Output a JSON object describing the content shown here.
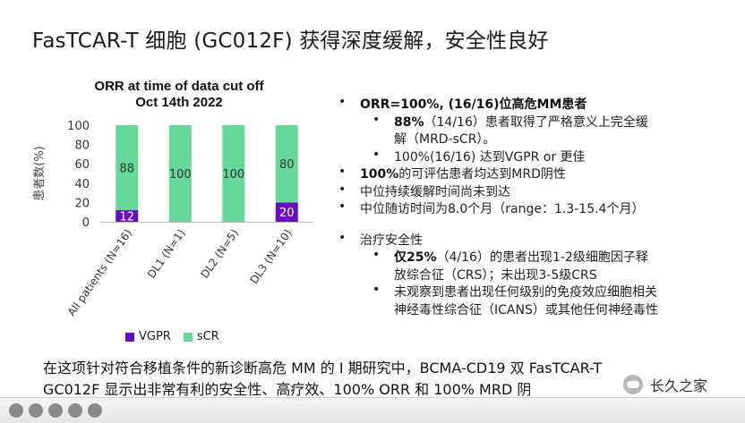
{
  "slide": {
    "title": "FasTCAR-T 细胞 (GC012F) 获得深度缓解，安全性良好"
  },
  "chart_data": {
    "type": "bar",
    "title_line1": "ORR at time of data cut off",
    "title_line2": "Oct 14th 2022",
    "ylabel": "患者数(%)",
    "ylim": [
      0,
      100
    ],
    "yticks": [
      "0",
      "20",
      "40",
      "60",
      "80",
      "100"
    ],
    "categories": [
      "All patients (N=16)",
      "DL1 (N=1)",
      "DL2 (N=5)",
      "DL3 (N=10)"
    ],
    "series": [
      {
        "name": "VGPR",
        "values": [
          12,
          0,
          0,
          20
        ],
        "labels": [
          "12",
          "",
          "",
          "20"
        ]
      },
      {
        "name": "sCR",
        "values": [
          88,
          100,
          100,
          80
        ],
        "labels": [
          "88",
          "100",
          "100",
          "80"
        ]
      }
    ],
    "legend": [
      "VGPR",
      "sCR"
    ],
    "legend_position": "bottom",
    "colors": {
      "VGPR": "#6a0dbe",
      "sCR": "#66d99a"
    }
  },
  "bullets": [
    {
      "level": 1,
      "bold": "ORR=100%, (16/16)位高危MM患者",
      "text": ""
    },
    {
      "level": 2,
      "bold": "88%",
      "text": "（14/16）患者取得了严格意义上完全缓"
    },
    {
      "level": 2,
      "bold": "",
      "text": "解（MRD-sCR）。",
      "cont": true
    },
    {
      "level": 2,
      "bold": "",
      "text": "100%(16/16) 达到VGPR or 更佳"
    },
    {
      "level": 1,
      "bold": "100%",
      "text": "的可评估患者均达到MRD阴性"
    },
    {
      "level": 1,
      "bold": "",
      "text": "中位持续缓解时间尚未到达"
    },
    {
      "level": 1,
      "bold": "",
      "text": "中位随访时间为8.0个月（range：1.3-15.4个月）"
    },
    {
      "level": 1,
      "bold": "",
      "text": "治疗安全性"
    },
    {
      "level": 2,
      "bold": "仅25%",
      "text": "（4/16）的患者出现1-2级细胞因子释"
    },
    {
      "level": 2,
      "bold": "",
      "text": "放综合征（CRS）；未出现3-5级CRS",
      "cont": true
    },
    {
      "level": 2,
      "bold": "",
      "text": "未观察到患者出现任何级别的免疫效应细胞相关"
    },
    {
      "level": 2,
      "bold": "",
      "text": "神经毒性综合征（ICANS）或其他任何神经毒性",
      "cont": true
    }
  ],
  "caption": {
    "line1": "在这项针对符合移植条件的新诊断高危 MM 的 I 期研究中，BCMA-CD19 双 FasTCAR-T",
    "line2": "GC012F 显示出非常有利的安全性、高疗效、100% ORR 和 100% MRD 阴"
  },
  "watermark": {
    "text": "长久之家"
  }
}
